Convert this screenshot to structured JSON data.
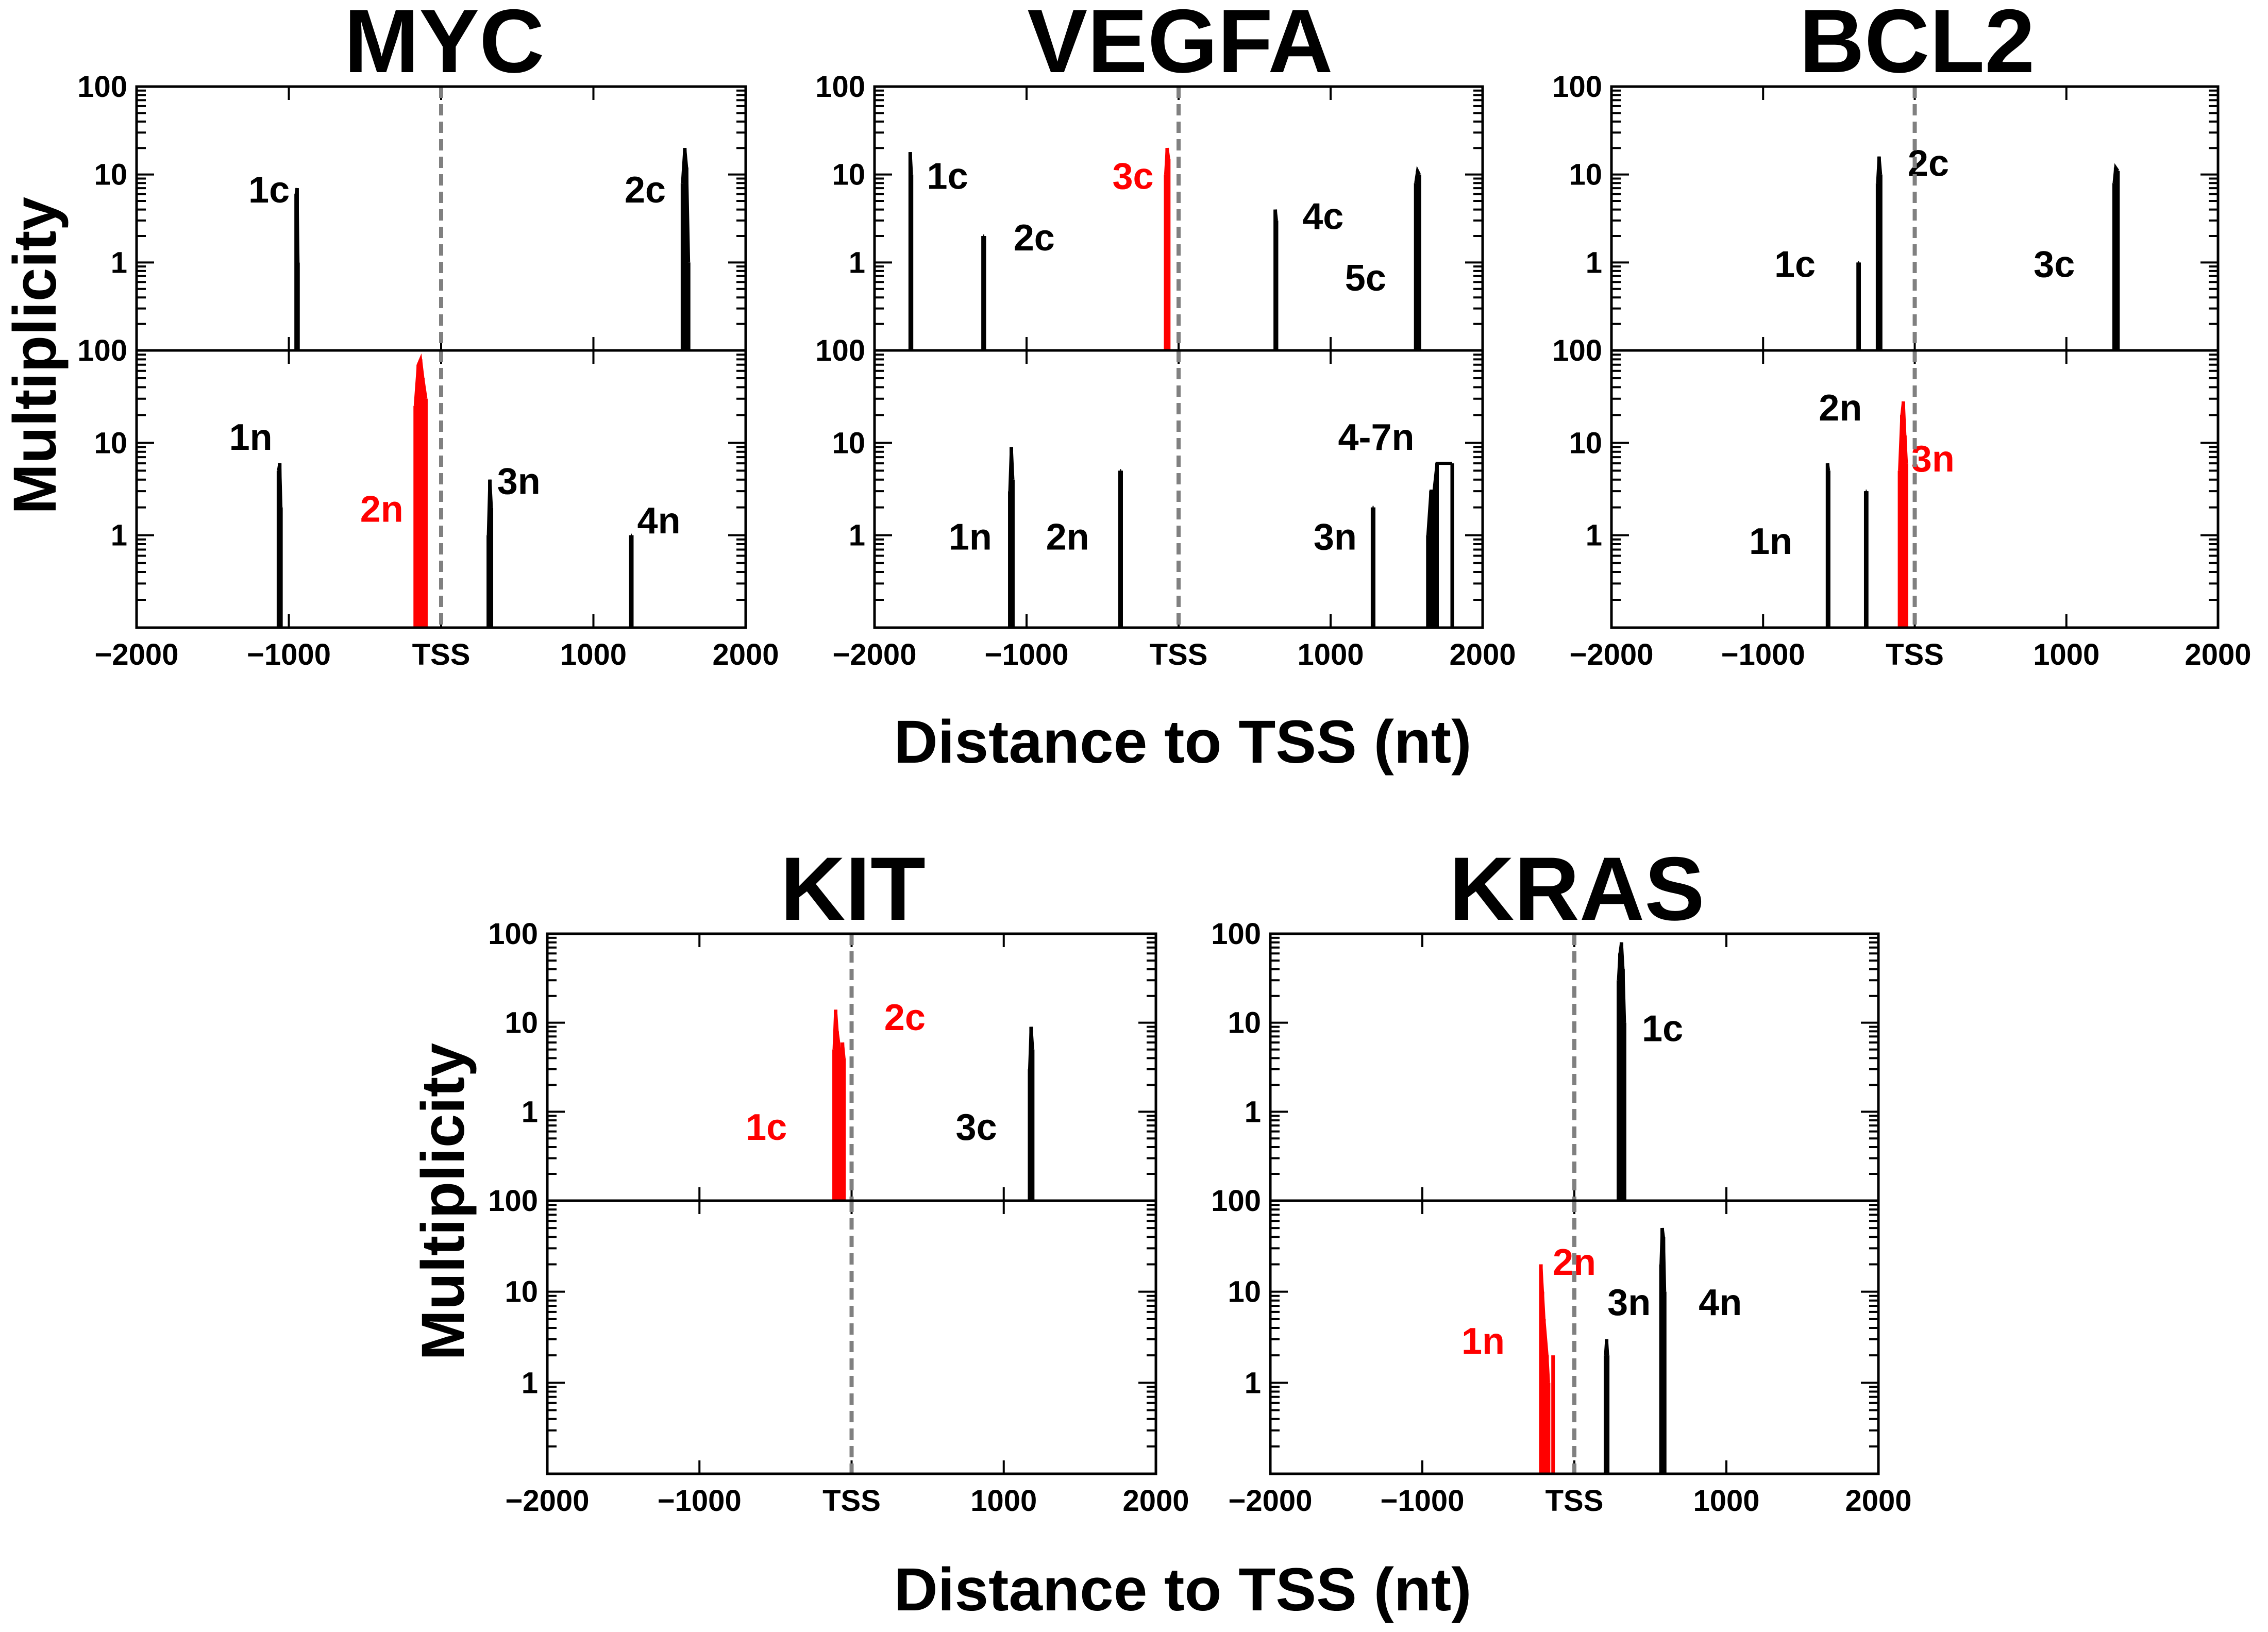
{
  "figure": {
    "y_axis_label": "Multiplicity",
    "x_axis_label": "Distance to TSS (nt)"
  },
  "colors": {
    "g4_default": "#000000",
    "g4_highlight": "#ff0000",
    "tss_line": "#808080",
    "frame": "#000000"
  },
  "chart_data": [
    {
      "type": "spike",
      "title": "MYC",
      "xlabel": "Distance to TSS (nt)",
      "ylabel": "Multiplicity",
      "xlim": [
        -2000,
        2000
      ],
      "ylim": [
        0.1,
        100
      ],
      "yscale": "log",
      "xticks": [
        -2000,
        -1000,
        0,
        1000,
        2000
      ],
      "xtick_labels": [
        "−2000",
        "−1000",
        "TSS",
        "1000",
        "2000"
      ],
      "yticks": [
        1,
        10,
        100
      ],
      "ytick_labels": [
        "1",
        "10",
        "100"
      ],
      "panels": [
        {
          "strand": "coding",
          "groups": [
            {
              "label": "1c",
              "x": -950,
              "peaks": [
                [
                  -952,
                  6
                ],
                [
                  -946,
                  7
                ],
                [
                  -940,
                  1
                ]
              ],
              "highlight": false,
              "label_x": -1130,
              "label_y": 7
            },
            {
              "label": "2c",
              "x": 1600,
              "peaks": [
                [
                  1585,
                  8
                ],
                [
                  1600,
                  20
                ],
                [
                  1612,
                  12
                ],
                [
                  1625,
                  1
                ]
              ],
              "highlight": false,
              "label_x": 1340,
              "label_y": 7
            }
          ]
        },
        {
          "strand": "non-coding",
          "groups": [
            {
              "label": "1n",
              "x": -1060,
              "peaks": [
                [
                  -1068,
                  5
                ],
                [
                  -1060,
                  6
                ],
                [
                  -1052,
                  2
                ]
              ],
              "highlight": false,
              "label_x": -1250,
              "label_y": 12
            },
            {
              "label": "2n",
              "x": -130,
              "peaks": [
                [
                  -170,
                  25
                ],
                [
                  -150,
                  70
                ],
                [
                  -135,
                  80
                ],
                [
                  -120,
                  50
                ],
                [
                  -100,
                  30
                ]
              ],
              "highlight": true,
              "label_x": -390,
              "label_y": 2
            },
            {
              "label": "3n",
              "x": 320,
              "peaks": [
                [
                  310,
                  1
                ],
                [
                  320,
                  4
                ],
                [
                  330,
                  2
                ]
              ],
              "highlight": false,
              "label_x": 510,
              "label_y": 4
            },
            {
              "label": "4n",
              "x": 1250,
              "peaks": [
                [
                  1246,
                  1
                ],
                [
                  1252,
                  1
                ]
              ],
              "highlight": false,
              "label_x": 1430,
              "label_y": 1.5
            }
          ]
        }
      ]
    },
    {
      "type": "spike",
      "title": "VEGFA",
      "xlabel": "Distance to TSS (nt)",
      "ylabel": "Multiplicity",
      "xlim": [
        -2000,
        2000
      ],
      "ylim": [
        0.1,
        100
      ],
      "yscale": "log",
      "xticks": [
        -2000,
        -1000,
        0,
        1000,
        2000
      ],
      "xtick_labels": [
        "−2000",
        "−1000",
        "TSS",
        "1000",
        "2000"
      ],
      "yticks": [
        1,
        10,
        100
      ],
      "ytick_labels": [
        "1",
        "10",
        "100"
      ],
      "panels": [
        {
          "strand": "coding",
          "groups": [
            {
              "label": "1c",
              "x": -1760,
              "peaks": [
                [
                  -1765,
                  18
                ],
                [
                  -1757,
                  10
                ]
              ],
              "highlight": false,
              "label_x": -1520,
              "label_y": 10
            },
            {
              "label": "2c",
              "x": -1280,
              "peaks": [
                [
                  -1286,
                  2
                ],
                [
                  -1278,
                  2
                ]
              ],
              "highlight": false,
              "label_x": -950,
              "label_y": 2
            },
            {
              "label": "3c",
              "x": -70,
              "peaks": [
                [
                  -85,
                  10
                ],
                [
                  -75,
                  20
                ],
                [
                  -65,
                  15
                ]
              ],
              "highlight": true,
              "label_x": -300,
              "label_y": 10
            },
            {
              "label": "4c",
              "x": 640,
              "peaks": [
                [
                  636,
                  4
                ],
                [
                  644,
                  3
                ]
              ],
              "highlight": false,
              "label_x": 950,
              "label_y": 3.5
            },
            {
              "label": "5c",
              "x": 1570,
              "peaks": [
                [
                  1560,
                  8
                ],
                [
                  1572,
                  11
                ],
                [
                  1584,
                  10
                ]
              ],
              "highlight": false,
              "label_x": 1230,
              "label_y": 0.7
            }
          ]
        },
        {
          "strand": "non-coding",
          "groups": [
            {
              "label": "1n",
              "x": -1100,
              "peaks": [
                [
                  -1110,
                  3
                ],
                [
                  -1100,
                  9
                ],
                [
                  -1090,
                  4
                ]
              ],
              "highlight": false,
              "label_x": -1370,
              "label_y": 1
            },
            {
              "label": "2n",
              "x": -380,
              "peaks": [
                [
                  -385,
                  5
                ],
                [
                  -378,
                  5
                ]
              ],
              "highlight": false,
              "label_x": -730,
              "label_y": 1
            },
            {
              "label": "3n",
              "x": 1280,
              "peaks": [
                [
                  1276,
                  2
                ],
                [
                  1283,
                  2
                ]
              ],
              "highlight": false,
              "label_x": 1030,
              "label_y": 1
            },
            {
              "label": "4-7n",
              "x": 1680,
              "peaks": [
                [
                  1640,
                  1
                ],
                [
                  1660,
                  3
                ],
                [
                  1680,
                  3
                ],
                [
                  1700,
                  6
                ],
                [
                  1800,
                  6
                ]
              ],
              "highlight": false,
              "label_x": 1300,
              "label_y": 12
            }
          ]
        }
      ]
    },
    {
      "type": "spike",
      "title": "BCL2",
      "xlabel": "Distance to TSS (nt)",
      "ylabel": "Multiplicity",
      "xlim": [
        -2000,
        2000
      ],
      "ylim": [
        0.1,
        100
      ],
      "yscale": "log",
      "xticks": [
        -2000,
        -1000,
        0,
        1000,
        2000
      ],
      "xtick_labels": [
        "−2000",
        "−1000",
        "TSS",
        "1000",
        "2000"
      ],
      "yticks": [
        1,
        10,
        100
      ],
      "ytick_labels": [
        "1",
        "10",
        "100"
      ],
      "panels": [
        {
          "strand": "coding",
          "groups": [
            {
              "label": "1c",
              "x": -370,
              "peaks": [
                [
                  -373,
                  1
                ],
                [
                  -367,
                  1
                ]
              ],
              "highlight": false,
              "label_x": -790,
              "label_y": 1
            },
            {
              "label": "2c",
              "x": -230,
              "peaks": [
                [
                  -245,
                  8
                ],
                [
                  -235,
                  16
                ],
                [
                  -225,
                  10
                ]
              ],
              "highlight": false,
              "label_x": 90,
              "label_y": 14
            },
            {
              "label": "3c",
              "x": 1330,
              "peaks": [
                [
                  1315,
                  8
                ],
                [
                  1325,
                  12
                ],
                [
                  1340,
                  11
                ]
              ],
              "highlight": false,
              "label_x": 920,
              "label_y": 1
            }
          ]
        },
        {
          "strand": "non-coding",
          "groups": [
            {
              "label": "1n",
              "x": -570,
              "peaks": [
                [
                  -575,
                  6
                ],
                [
                  -568,
                  5
                ]
              ],
              "highlight": false,
              "label_x": -950,
              "label_y": 0.9
            },
            {
              "label": "2n",
              "x": -320,
              "peaks": [
                [
                  -323,
                  3
                ],
                [
                  -317,
                  3
                ]
              ],
              "highlight": false,
              "label_x": -490,
              "label_y": 25
            },
            {
              "label": "3n",
              "x": -70,
              "peaks": [
                [
                  -100,
                  5
                ],
                [
                  -85,
                  20
                ],
                [
                  -75,
                  28
                ],
                [
                  -65,
                  12
                ],
                [
                  -55,
                  6
                ]
              ],
              "highlight": true,
              "label_x": 120,
              "label_y": 7
            }
          ]
        }
      ]
    },
    {
      "type": "spike",
      "title": "KIT",
      "xlabel": "Distance to TSS (nt)",
      "ylabel": "Multiplicity",
      "xlim": [
        -2000,
        2000
      ],
      "ylim": [
        0.1,
        100
      ],
      "yscale": "log",
      "xticks": [
        -2000,
        -1000,
        0,
        1000,
        2000
      ],
      "xtick_labels": [
        "−2000",
        "−1000",
        "TSS",
        "1000",
        "2000"
      ],
      "yticks": [
        1,
        10,
        100
      ],
      "ytick_labels": [
        "1",
        "10",
        "100"
      ],
      "panels": [
        {
          "strand": "coding",
          "groups": [
            {
              "label": "1c",
              "x": -100,
              "peaks": [
                [
                  -115,
                  5
                ],
                [
                  -105,
                  14
                ],
                [
                  -95,
                  8
                ],
                [
                  -85,
                  6
                ],
                [
                  -75,
                  4
                ]
              ],
              "highlight": true,
              "label_x": -560,
              "label_y": 0.7
            },
            {
              "label": "2c",
              "x": -60,
              "peaks": [
                [
                  -60,
                  6
                ],
                [
                  -50,
                  4
                ]
              ],
              "highlight": true,
              "label_x": 350,
              "label_y": 12
            },
            {
              "label": "3c",
              "x": 1180,
              "peaks": [
                [
                  1170,
                  3
                ],
                [
                  1180,
                  9
                ],
                [
                  1190,
                  5
                ]
              ],
              "highlight": false,
              "label_x": 820,
              "label_y": 0.7
            }
          ]
        },
        {
          "strand": "non-coding",
          "groups": []
        }
      ]
    },
    {
      "type": "spike",
      "title": "KRAS",
      "xlabel": "Distance to TSS (nt)",
      "ylabel": "Multiplicity",
      "xlim": [
        -2000,
        2000
      ],
      "ylim": [
        0.1,
        100
      ],
      "yscale": "log",
      "xticks": [
        -2000,
        -1000,
        0,
        1000,
        2000
      ],
      "xtick_labels": [
        "−2000",
        "−1000",
        "TSS",
        "1000",
        "2000"
      ],
      "yticks": [
        1,
        10,
        100
      ],
      "ytick_labels": [
        "1",
        "10",
        "100"
      ],
      "panels": [
        {
          "strand": "coding",
          "groups": [
            {
              "label": "1c",
              "x": 310,
              "peaks": [
                [
                  290,
                  30
                ],
                [
                  300,
                  60
                ],
                [
                  310,
                  80
                ],
                [
                  320,
                  40
                ],
                [
                  330,
                  10
                ]
              ],
              "highlight": false,
              "label_x": 580,
              "label_y": 9
            }
          ]
        },
        {
          "strand": "non-coding",
          "groups": [
            {
              "label": "1n",
              "x": -200,
              "peaks": [
                [
                  -220,
                  20
                ],
                [
                  -210,
                  10
                ],
                [
                  -200,
                  5
                ],
                [
                  -180,
                  2
                ],
                [
                  -170,
                  1
                ]
              ],
              "highlight": true,
              "label_x": -600,
              "label_y": 3
            },
            {
              "label": "2n",
              "x": -130,
              "peaks": [
                [
                  -140,
                  2
                ]
              ],
              "highlight": true,
              "label_x": 0,
              "label_y": 22
            },
            {
              "label": "3n",
              "x": 210,
              "peaks": [
                [
                  205,
                  2
                ],
                [
                  212,
                  3
                ],
                [
                  219,
                  2
                ]
              ],
              "highlight": false,
              "label_x": 360,
              "label_y": 8
            },
            {
              "label": "4n",
              "x": 580,
              "peaks": [
                [
                  570,
                  20
                ],
                [
                  578,
                  50
                ],
                [
                  586,
                  40
                ],
                [
                  594,
                  10
                ]
              ],
              "highlight": false,
              "label_x": 960,
              "label_y": 8
            }
          ]
        }
      ]
    }
  ]
}
